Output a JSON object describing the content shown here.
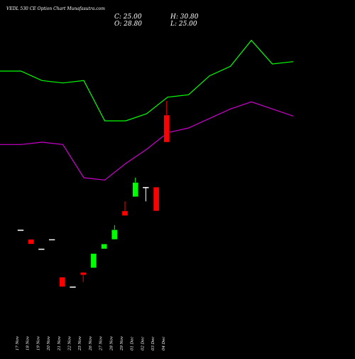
{
  "caption": "VEDL 530 CE Option Chart Munafasutra.com",
  "ohlc": {
    "close": "C: 25.00",
    "high": "H: 30.80",
    "open": "O: 28.80",
    "low": "L: 25.00"
  },
  "colors": {
    "background": "#000000",
    "upper_line": "#00ff00",
    "lower_line": "#cc00cc",
    "bull": "#00ff00",
    "bear": "#ff0000",
    "text": "#ffffff"
  },
  "chart_data": {
    "type": "candlestick",
    "categories": [
      "17 Nov",
      "18 Nov",
      "19 Nov",
      "20 Nov",
      "21 Nov",
      "22 Nov",
      "25 Nov",
      "26 Nov",
      "27 Nov",
      "28 Nov",
      "29 Nov",
      "01 Dec",
      "02 Dec",
      "03 Dec",
      "04 Dec"
    ],
    "candles": [
      {
        "date": "17 Nov",
        "open": 12.67,
        "high": 12.67,
        "low": 12.67,
        "close": 12.67
      },
      {
        "date": "18 Nov",
        "open": 11.33,
        "high": 11.33,
        "low": 10.67,
        "close": 10.67
      },
      {
        "date": "19 Nov",
        "open": 10.0,
        "high": 10.0,
        "low": 10.0,
        "close": 10.0
      },
      {
        "date": "20 Nov",
        "open": 11.33,
        "high": 11.33,
        "low": 11.33,
        "close": 11.33
      },
      {
        "date": "21 Nov",
        "open": 6.0,
        "high": 6.0,
        "low": 4.67,
        "close": 4.67
      },
      {
        "date": "22 Nov",
        "open": 4.67,
        "high": 4.67,
        "low": 4.67,
        "close": 4.67
      },
      {
        "date": "25 Nov",
        "open": 6.67,
        "high": 6.67,
        "low": 5.33,
        "close": 6.33
      },
      {
        "date": "26 Nov",
        "open": 7.33,
        "high": 9.33,
        "low": 7.33,
        "close": 9.33
      },
      {
        "date": "27 Nov",
        "open": 10.0,
        "high": 10.67,
        "low": 10.0,
        "close": 10.67
      },
      {
        "date": "28 Nov",
        "open": 11.33,
        "high": 13.33,
        "low": 11.33,
        "close": 12.67
      },
      {
        "date": "29 Nov",
        "open": 15.33,
        "high": 16.67,
        "low": 14.67,
        "close": 14.67
      },
      {
        "date": "01 Dec",
        "open": 17.33,
        "high": 20.0,
        "low": 17.33,
        "close": 19.33
      },
      {
        "date": "02 Dec",
        "open": 18.67,
        "high": 18.67,
        "low": 16.67,
        "close": 18.67
      },
      {
        "date": "03 Dec",
        "open": 18.67,
        "high": 18.67,
        "low": 15.33,
        "close": 15.33
      },
      {
        "date": "04 Dec",
        "open": 28.8,
        "high": 30.8,
        "low": 25.0,
        "close": 25.0
      }
    ],
    "lines": [
      {
        "values": [
          35.0,
          35.0,
          33.67,
          33.33,
          33.67,
          28.0,
          28.0,
          29.0,
          31.33,
          31.67,
          34.33,
          35.67,
          39.33,
          36.0,
          36.33
        ]
      },
      {
        "values": [
          24.67,
          24.67,
          25.0,
          24.67,
          20.0,
          19.67,
          22.0,
          24.0,
          26.33,
          27.0,
          28.33,
          29.67,
          30.67,
          29.67,
          28.67
        ]
      }
    ],
    "ylim": [
      0,
      45
    ],
    "grid": false
  }
}
